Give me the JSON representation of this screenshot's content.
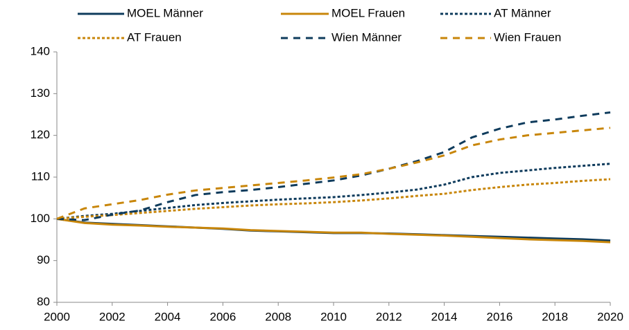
{
  "chart_data": {
    "type": "line",
    "x": [
      2000,
      2001,
      2002,
      2003,
      2004,
      2005,
      2006,
      2007,
      2008,
      2009,
      2010,
      2011,
      2012,
      2013,
      2014,
      2015,
      2016,
      2017,
      2018,
      2019,
      2020
    ],
    "series": [
      {
        "name": "MOEL Männer",
        "color": "#0e3b5c",
        "line_style": "solid",
        "values": [
          100,
          99.1,
          98.8,
          98.5,
          98.2,
          97.9,
          97.6,
          97.2,
          97.0,
          96.8,
          96.6,
          96.6,
          96.5,
          96.3,
          96.1,
          95.9,
          95.7,
          95.5,
          95.3,
          95.1,
          94.8
        ]
      },
      {
        "name": "MOEL Frauen",
        "color": "#c8860a",
        "line_style": "solid",
        "values": [
          100,
          99.0,
          98.6,
          98.4,
          98.1,
          97.9,
          97.7,
          97.3,
          97.1,
          96.9,
          96.7,
          96.7,
          96.4,
          96.2,
          96.0,
          95.7,
          95.4,
          95.1,
          94.9,
          94.7,
          94.4
        ]
      },
      {
        "name": "AT Männer",
        "color": "#0e3b5c",
        "line_style": "dotted",
        "values": [
          100,
          100.7,
          101.2,
          101.9,
          102.6,
          103.3,
          103.8,
          104.2,
          104.6,
          104.9,
          105.2,
          105.7,
          106.3,
          107.0,
          108.2,
          110.0,
          111.0,
          111.6,
          112.2,
          112.7,
          113.2
        ]
      },
      {
        "name": "AT Frauen",
        "color": "#c8860a",
        "line_style": "dotted",
        "values": [
          100,
          100.5,
          100.9,
          101.4,
          101.9,
          102.4,
          102.8,
          103.2,
          103.5,
          103.7,
          104.0,
          104.4,
          104.9,
          105.5,
          106.0,
          106.9,
          107.6,
          108.2,
          108.6,
          109.1,
          109.5
        ]
      },
      {
        "name": "Wien Männer",
        "color": "#0e3b5c",
        "line_style": "dashed",
        "values": [
          100,
          99.7,
          101.0,
          102.0,
          104.0,
          105.7,
          106.4,
          106.9,
          107.6,
          108.4,
          109.2,
          110.4,
          112.0,
          113.8,
          116.0,
          119.5,
          121.6,
          123.1,
          123.8,
          124.7,
          125.5
        ]
      },
      {
        "name": "Wien Frauen",
        "color": "#c8860a",
        "line_style": "dashed",
        "values": [
          100,
          102.5,
          103.5,
          104.5,
          105.8,
          106.8,
          107.4,
          108.0,
          108.6,
          109.2,
          109.9,
          110.7,
          112.0,
          113.5,
          115.2,
          117.6,
          119.0,
          120.0,
          120.6,
          121.2,
          121.8
        ]
      }
    ],
    "xlim": [
      2000,
      2020
    ],
    "xticks": [
      2000,
      2002,
      2004,
      2006,
      2008,
      2010,
      2012,
      2014,
      2016,
      2018,
      2020
    ],
    "ylim": [
      80,
      140
    ],
    "yticks": [
      80,
      90,
      100,
      110,
      120,
      130,
      140
    ],
    "legend": "top"
  }
}
